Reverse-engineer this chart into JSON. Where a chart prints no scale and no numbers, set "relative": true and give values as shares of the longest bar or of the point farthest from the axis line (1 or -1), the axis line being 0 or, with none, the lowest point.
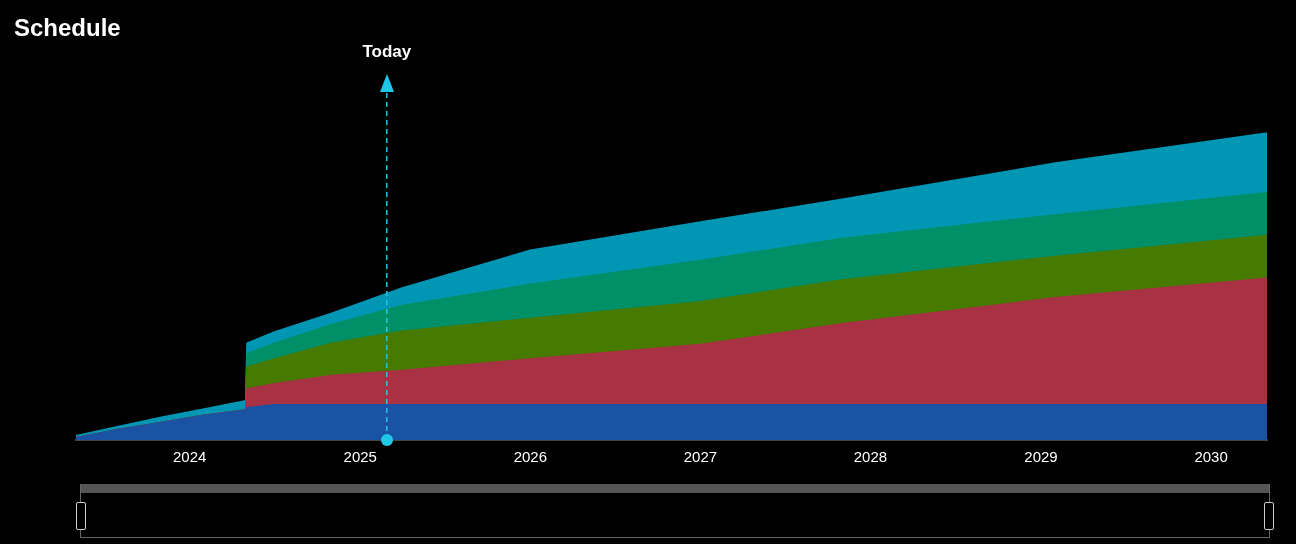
{
  "chart_data": {
    "type": "area",
    "title": "Schedule",
    "stacked": true,
    "relative": true,
    "legend": false,
    "grid": false,
    "x": [
      "2023-05-02",
      "2023-08-01",
      "2023-11-01",
      "2024-02-01",
      "2024-04-30",
      "2024-05-03",
      "2024-07-01",
      "2024-11-01",
      "2025-04-01",
      "2026-01-01",
      "2027-01-01",
      "2027-11-01",
      "2029-02-01",
      "2030-05-01"
    ],
    "xlim": [
      "2023-05-02",
      "2030-05-01"
    ],
    "xticks": [
      "2024",
      "2025",
      "2026",
      "2027",
      "2028",
      "2029",
      "2030"
    ],
    "series": [
      {
        "color": "#1a53a3",
        "values": [
          0.007,
          0.034,
          0.057,
          0.081,
          0.098,
          0.105,
          0.115,
          0.115,
          0.115,
          0.115,
          0.115,
          0.115,
          0.115,
          0.115
        ]
      },
      {
        "color": "#a83244",
        "values": [
          0,
          0,
          0,
          0,
          0,
          0.061,
          0.068,
          0.095,
          0.111,
          0.149,
          0.196,
          0.264,
          0.348,
          0.412
        ]
      },
      {
        "color": "#467a00",
        "values": [
          0,
          0,
          0,
          0,
          0,
          0.071,
          0.081,
          0.105,
          0.128,
          0.132,
          0.139,
          0.142,
          0.135,
          0.139
        ]
      },
      {
        "color": "#009068",
        "values": [
          0,
          0,
          0,
          0,
          0,
          0.044,
          0.051,
          0.061,
          0.084,
          0.111,
          0.135,
          0.135,
          0.135,
          0.139
        ]
      },
      {
        "color": "#0096b4",
        "values": [
          0.007,
          0.01,
          0.017,
          0.02,
          0.03,
          0.034,
          0.037,
          0.037,
          0.057,
          0.111,
          0.125,
          0.128,
          0.169,
          0.195
        ]
      }
    ],
    "ref_lines": [
      {
        "axis": "x",
        "value": "2025-02-27",
        "label": "Today",
        "color": "#1ec8e6",
        "line_style": "dashed"
      }
    ]
  }
}
